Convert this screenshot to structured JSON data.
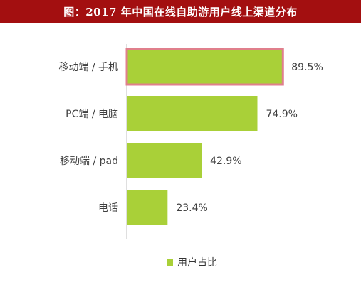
{
  "title": "图：2017 年中国在线自助游用户线上渠道分布",
  "legend": {
    "label": "用户占比"
  },
  "colors": {
    "bar": "#a9d038",
    "highlight_border": "#e07f8c",
    "title_bg": "#a30f10"
  },
  "chart_data": {
    "type": "bar",
    "orientation": "horizontal",
    "categories": [
      "移动端 / 手机",
      "PC端 / 电脑",
      "移动端 / pad",
      "电话"
    ],
    "values": [
      89.5,
      74.9,
      42.9,
      23.4
    ],
    "value_labels": [
      "89.5%",
      "74.9%",
      "42.9%",
      "23.4%"
    ],
    "series": [
      {
        "name": "用户占比",
        "values": [
          89.5,
          74.9,
          42.9,
          23.4
        ]
      }
    ],
    "xlim": [
      0,
      100
    ],
    "highlighted_index": 0,
    "grid": false,
    "legend_position": "bottom"
  }
}
